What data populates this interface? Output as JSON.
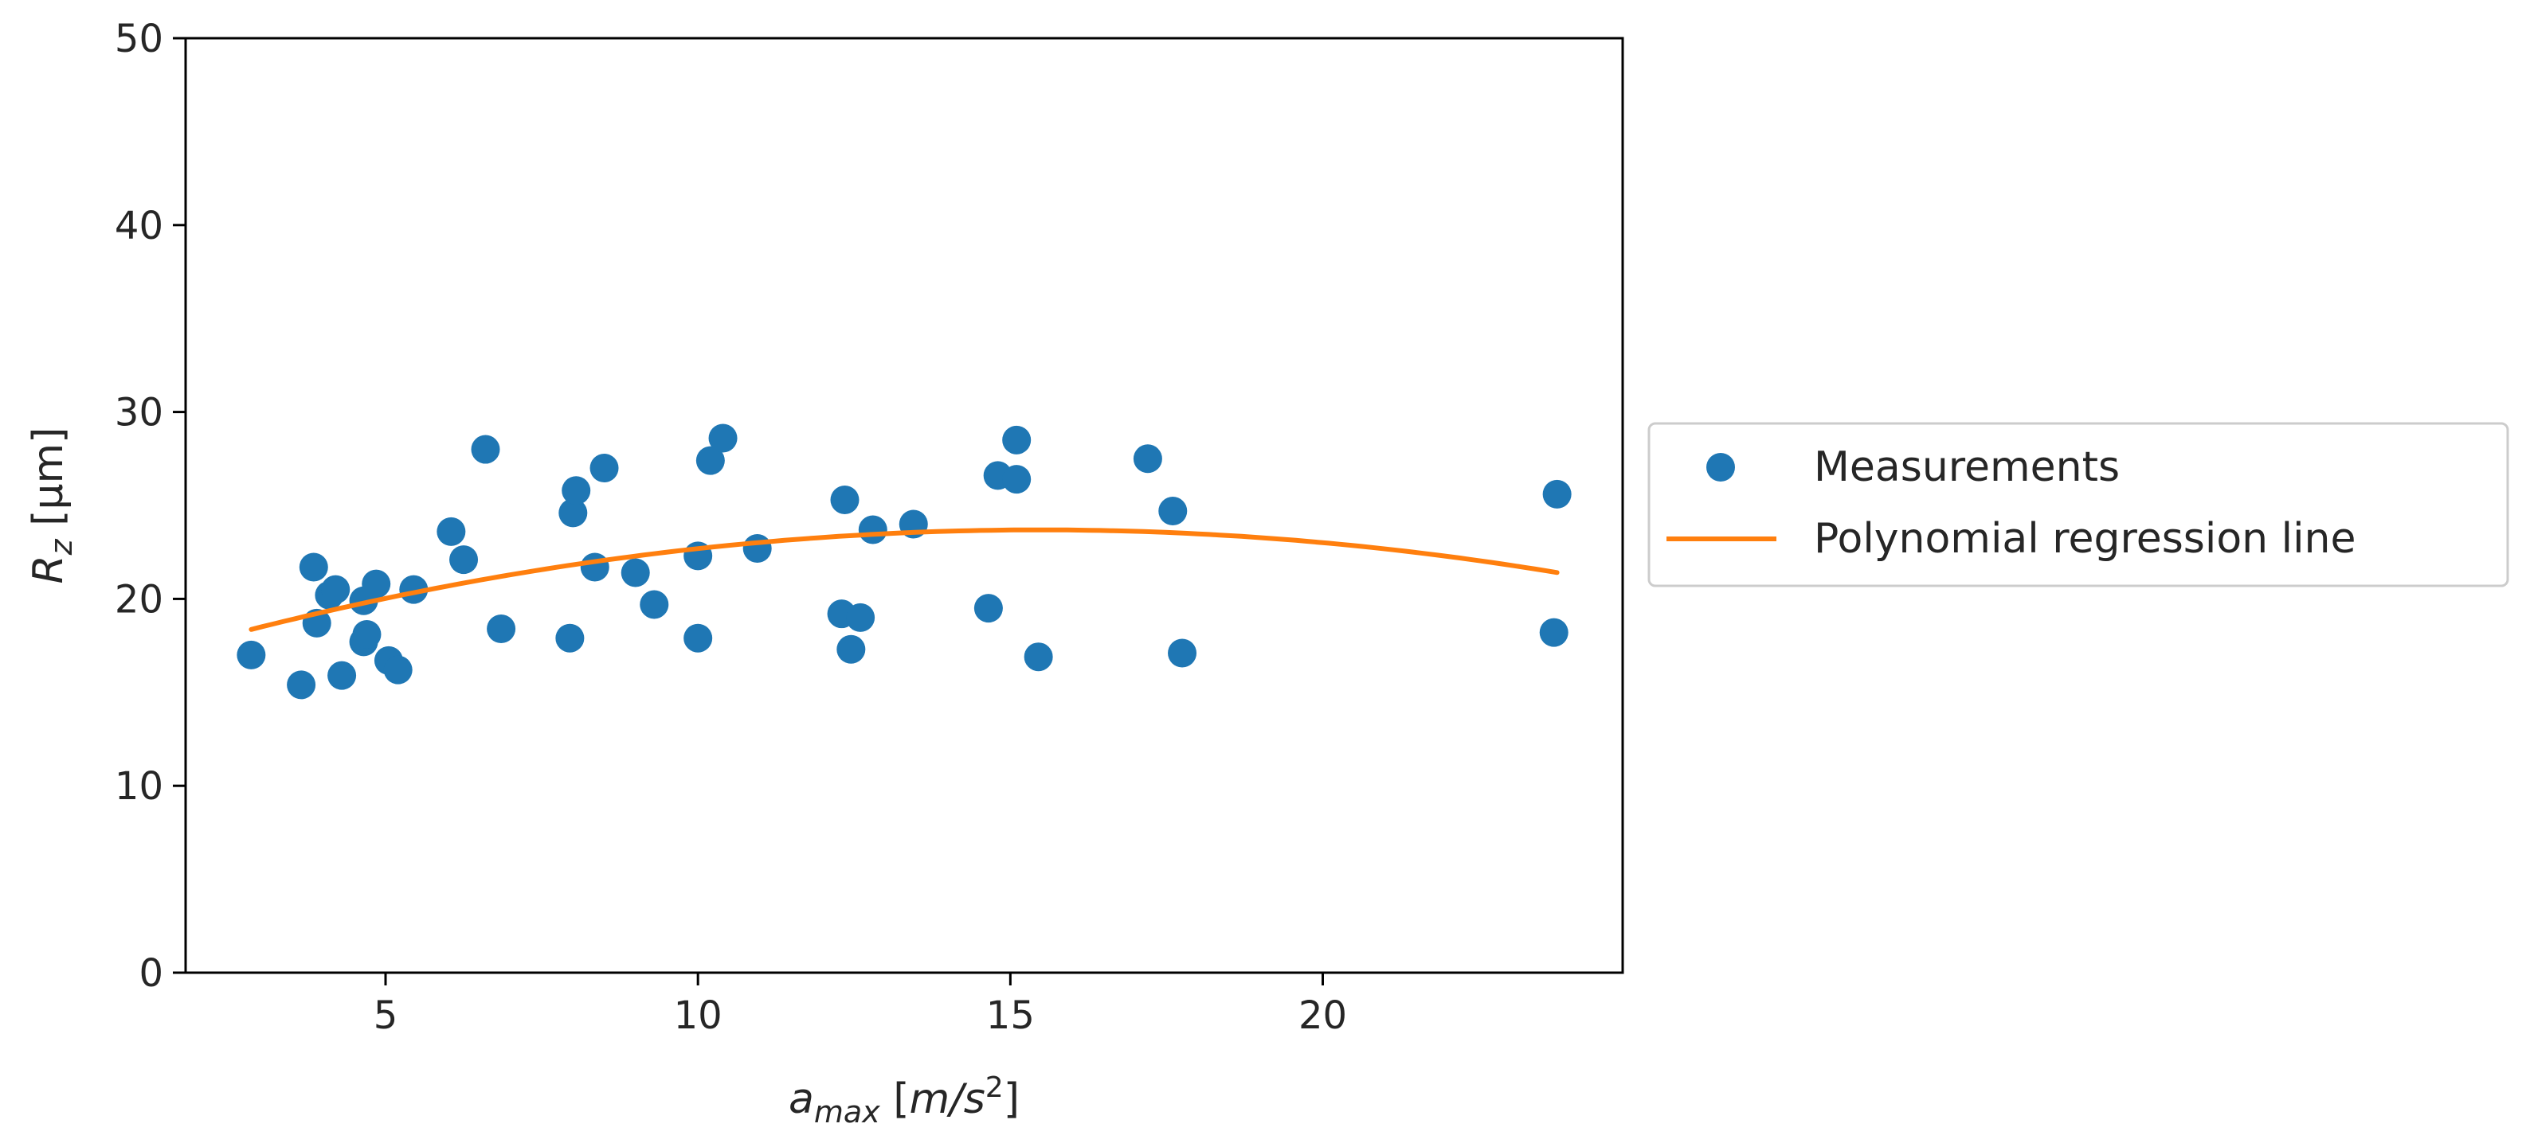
{
  "chart_data": {
    "type": "scatter",
    "title": "",
    "xlabel": "a_max [m/s^2]",
    "xlabel_parts": {
      "main": "a",
      "sub": "max",
      "unit_open": " [",
      "unit_main": "m/s",
      "unit_sup": "2",
      "unit_close": "]"
    },
    "ylabel": "R_z [μm]",
    "ylabel_parts": {
      "main": "R",
      "sub": "z",
      "unit": " [μm]"
    },
    "xlim": [
      1.8,
      24.8
    ],
    "ylim": [
      0,
      50
    ],
    "xticks": [
      5,
      10,
      15,
      20
    ],
    "yticks": [
      0,
      10,
      20,
      30,
      40,
      50
    ],
    "grid": false,
    "legend_position": "center-right-outside",
    "series": [
      {
        "name": "Measurements",
        "kind": "scatter",
        "color": "#1f77b4",
        "points": [
          {
            "x": 2.85,
            "y": 17.0
          },
          {
            "x": 3.65,
            "y": 15.4
          },
          {
            "x": 3.85,
            "y": 21.7
          },
          {
            "x": 3.9,
            "y": 18.7
          },
          {
            "x": 4.1,
            "y": 20.2
          },
          {
            "x": 4.2,
            "y": 20.5
          },
          {
            "x": 4.3,
            "y": 15.9
          },
          {
            "x": 4.65,
            "y": 17.7
          },
          {
            "x": 4.65,
            "y": 19.9
          },
          {
            "x": 4.7,
            "y": 18.1
          },
          {
            "x": 4.85,
            "y": 20.8
          },
          {
            "x": 5.05,
            "y": 16.7
          },
          {
            "x": 5.2,
            "y": 16.2
          },
          {
            "x": 5.45,
            "y": 20.5
          },
          {
            "x": 6.05,
            "y": 23.6
          },
          {
            "x": 6.25,
            "y": 22.1
          },
          {
            "x": 6.6,
            "y": 28.0
          },
          {
            "x": 6.85,
            "y": 18.4
          },
          {
            "x": 7.95,
            "y": 17.9
          },
          {
            "x": 8.0,
            "y": 24.6
          },
          {
            "x": 8.05,
            "y": 25.8
          },
          {
            "x": 8.35,
            "y": 21.7
          },
          {
            "x": 8.5,
            "y": 27.0
          },
          {
            "x": 9.0,
            "y": 21.4
          },
          {
            "x": 9.3,
            "y": 19.7
          },
          {
            "x": 10.0,
            "y": 17.9
          },
          {
            "x": 10.0,
            "y": 22.3
          },
          {
            "x": 10.2,
            "y": 27.4
          },
          {
            "x": 10.4,
            "y": 28.6
          },
          {
            "x": 10.95,
            "y": 22.7
          },
          {
            "x": 12.3,
            "y": 19.2
          },
          {
            "x": 12.35,
            "y": 25.3
          },
          {
            "x": 12.45,
            "y": 17.3
          },
          {
            "x": 12.6,
            "y": 19.0
          },
          {
            "x": 12.8,
            "y": 23.7
          },
          {
            "x": 13.45,
            "y": 24.0
          },
          {
            "x": 14.65,
            "y": 19.5
          },
          {
            "x": 14.8,
            "y": 26.6
          },
          {
            "x": 15.1,
            "y": 26.4
          },
          {
            "x": 15.1,
            "y": 28.5
          },
          {
            "x": 15.45,
            "y": 16.9
          },
          {
            "x": 17.2,
            "y": 27.5
          },
          {
            "x": 17.6,
            "y": 24.7
          },
          {
            "x": 17.75,
            "y": 17.1
          },
          {
            "x": 23.7,
            "y": 18.2
          },
          {
            "x": 23.75,
            "y": 25.6
          }
        ]
      },
      {
        "name": "Polynomial regression line",
        "kind": "line",
        "color": "#ff7f0e",
        "x_range": [
          2.85,
          23.75
        ],
        "coefficients": [
          15.69,
          1.034,
          -0.0334
        ]
      }
    ]
  }
}
